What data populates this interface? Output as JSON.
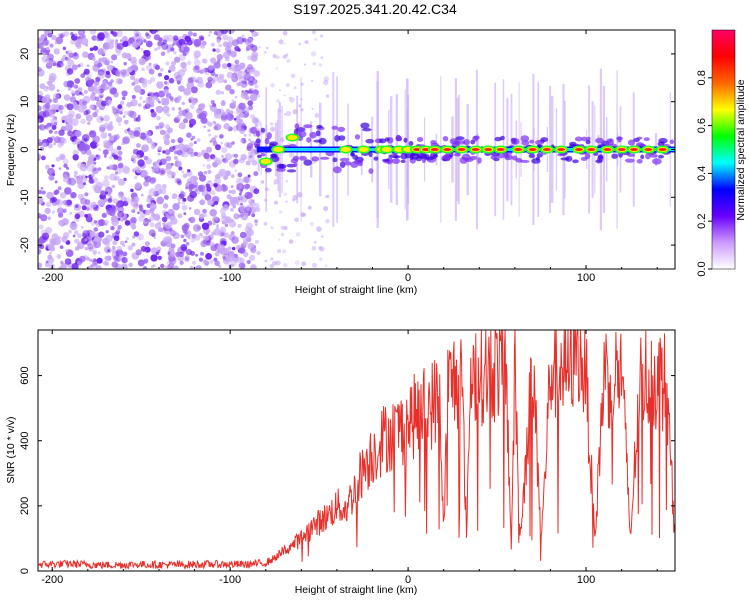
{
  "title": "S197.2025.341.20.42.C34",
  "chart_data": [
    {
      "type": "heatmap",
      "title": "S197.2025.341.20.42.C34",
      "xlabel": "Height of straight line (km)",
      "ylabel": "Frequency (Hz)",
      "xlim": [
        -208,
        150
      ],
      "ylim": [
        -25,
        25
      ],
      "xticks": [
        -200,
        -100,
        0,
        100
      ],
      "xtick_labels": [
        "-200",
        "-100",
        "0",
        "100"
      ],
      "yticks": [
        20,
        10,
        0,
        -10,
        -20
      ],
      "ytick_labels": [
        "20",
        "10",
        "0",
        "-10",
        "-20"
      ],
      "colorbar": {
        "label": "Normalized spectral amplitude",
        "range": [
          0,
          1
        ],
        "ticks": [
          0.0,
          0.2,
          0.4,
          0.6,
          0.8
        ],
        "tick_labels": [
          "0.0",
          "0.2",
          "0.4",
          "0.6",
          "0.8"
        ],
        "colors": [
          "#ffffff",
          "#cc99ff",
          "#6600ff",
          "#0000ff",
          "#00ffff",
          "#00ff00",
          "#ffff00",
          "#ff6600",
          "#ff0000",
          "#ff0066"
        ]
      },
      "noise_region_x": [
        -208,
        -85
      ],
      "signal_ridge": {
        "x_start": -85,
        "x_end": 150,
        "freq_hz": 0
      },
      "strong_peaks_x": [
        -80,
        -73,
        -65,
        -35,
        -25,
        -15,
        -12,
        -5,
        0,
        5,
        10,
        15,
        22,
        30,
        38,
        45,
        52,
        62,
        70,
        78,
        86,
        96,
        103,
        112,
        120,
        127,
        135,
        143
      ]
    },
    {
      "type": "line",
      "xlabel": "Height of straight line (km)",
      "ylabel": "SNR (10 * v/v)",
      "xlim": [
        -208,
        150
      ],
      "ylim": [
        0,
        740
      ],
      "xticks": [
        -200,
        -100,
        0,
        100
      ],
      "xtick_labels": [
        "-200",
        "-100",
        "0",
        "100"
      ],
      "yticks": [
        0,
        200,
        400,
        600
      ],
      "ytick_labels": [
        "0",
        "200",
        "400",
        "600"
      ],
      "series": [
        {
          "name": "SNR",
          "color": "#e8302a",
          "x": [
            -208,
            -190,
            -170,
            -150,
            -130,
            -110,
            -90,
            -80,
            -75,
            -70,
            -65,
            -60,
            -55,
            -50,
            -45,
            -40,
            -35,
            -30,
            -25,
            -20,
            -15,
            -10,
            -5,
            0,
            5,
            10,
            15,
            18,
            20,
            22,
            25,
            30,
            33,
            35,
            40,
            45,
            50,
            55,
            58,
            60,
            63,
            70,
            75,
            80,
            85,
            90,
            95,
            100,
            105,
            110,
            115,
            120,
            125,
            130,
            135,
            140,
            145,
            150
          ],
          "values": [
            20,
            22,
            18,
            20,
            19,
            21,
            20,
            25,
            40,
            60,
            80,
            100,
            130,
            150,
            170,
            200,
            190,
            250,
            320,
            360,
            400,
            420,
            430,
            460,
            480,
            500,
            520,
            540,
            90,
            560,
            580,
            600,
            100,
            610,
            620,
            610,
            630,
            640,
            70,
            620,
            100,
            630,
            100,
            620,
            640,
            610,
            720,
            600,
            90,
            610,
            590,
            620,
            100,
            580,
            600,
            590,
            580,
            100
          ]
        }
      ]
    }
  ]
}
